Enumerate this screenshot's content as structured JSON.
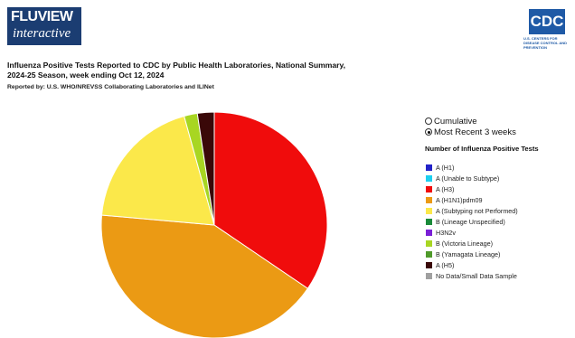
{
  "header": {
    "logo_title": "FLUVIEW",
    "logo_subtitle": "interactive",
    "agency_logo": "CDC",
    "agency_name": "U.S. CENTERS FOR DISEASE CONTROL AND PREVENTION"
  },
  "controls": {
    "options": [
      "Cumulative",
      "Most Recent 3 weeks"
    ],
    "selected": 1
  },
  "chart_data": {
    "type": "pie",
    "title": "Influenza Positive Tests Reported to CDC by Public Health Laboratories, National Summary, 2024-25 Season, week ending Oct 12, 2024",
    "subtitle": "Reported by: U.S. WHO/NREVSS Collaborating Laboratories and ILINet",
    "legend_title": "Number of Influenza Positive Tests",
    "categories": [
      "A (H1)",
      "A (Unable to Subtype)",
      "A (H3)",
      "A (H1N1)pdm09",
      "A (Subtyping not Performed)",
      "B (Lineage Unspecified)",
      "H3N2v",
      "B (Victoria Lineage)",
      "B (Yamagata Lineage)",
      "A (H5)",
      "No Data/Small Data Sample"
    ],
    "colors": [
      "#2323c8",
      "#1ccfef",
      "#f00c0c",
      "#eb9a14",
      "#fbe84a",
      "#1a8a3a",
      "#7a1fd6",
      "#a8d622",
      "#4f9a2a",
      "#3a0808",
      "#a0a0a0"
    ],
    "values": [
      0,
      0,
      34.5,
      41.9,
      19.3,
      0,
      0,
      1.9,
      0,
      2.4,
      0
    ]
  }
}
